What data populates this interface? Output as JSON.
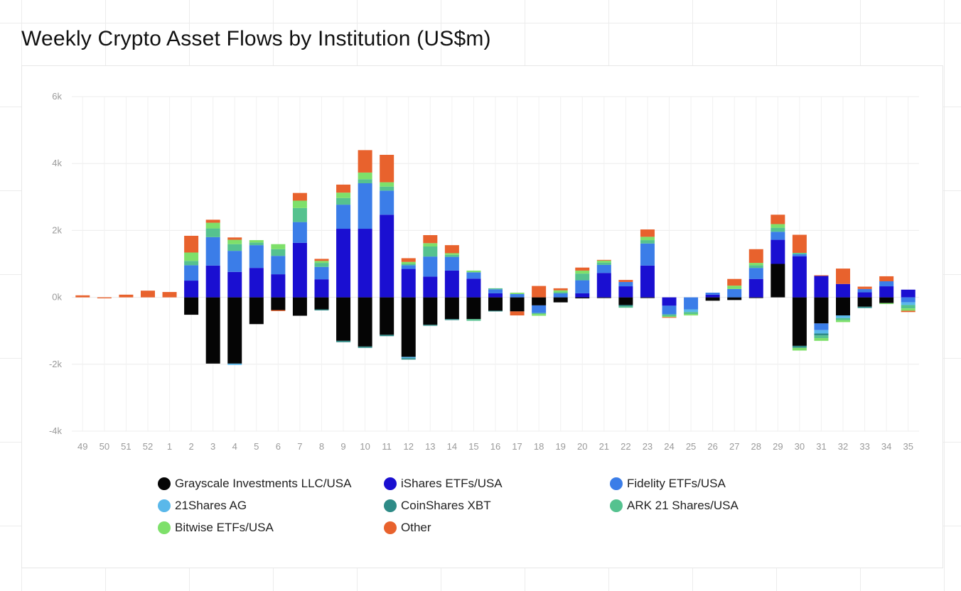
{
  "title": "Weekly Crypto Asset Flows by Institution (US$m)",
  "chart_data": {
    "type": "bar",
    "stacked": true,
    "ylim": [
      -4000,
      6000
    ],
    "yticks": [
      6000,
      4000,
      2000,
      0,
      -2000,
      -4000
    ],
    "ytick_labels": [
      "6k",
      "4k",
      "2k",
      "0k",
      "-2k",
      "-4k"
    ],
    "grid": true,
    "legend_position": "bottom",
    "categories": [
      "49",
      "50",
      "51",
      "52",
      "1",
      "2",
      "3",
      "4",
      "5",
      "6",
      "7",
      "8",
      "9",
      "10",
      "11",
      "12",
      "13",
      "14",
      "15",
      "16",
      "17",
      "18",
      "19",
      "20",
      "21",
      "22",
      "23",
      "24",
      "25",
      "26",
      "27",
      "28",
      "29",
      "30",
      "31",
      "32",
      "33",
      "34",
      "35"
    ],
    "series": [
      {
        "name": "Grayscale Investments LLC/USA",
        "color": "#050505",
        "values": [
          0,
          0,
          0,
          0,
          0,
          -520,
          -1980,
          -1980,
          -800,
          -380,
          -550,
          -360,
          -1300,
          -1470,
          -1120,
          -1780,
          -820,
          -650,
          -650,
          -400,
          -420,
          -240,
          -150,
          -30,
          -20,
          -230,
          -20,
          0,
          0,
          -100,
          -80,
          -20,
          1000,
          -1450,
          -780,
          -540,
          -280,
          -170,
          0
        ]
      },
      {
        "name": "iShares ETFs/USA",
        "color": "#1a0fd1",
        "values": [
          0,
          0,
          0,
          0,
          0,
          500,
          950,
          760,
          880,
          690,
          1630,
          540,
          2050,
          2050,
          2470,
          850,
          620,
          800,
          560,
          120,
          0,
          0,
          0,
          120,
          730,
          330,
          950,
          -250,
          0,
          80,
          0,
          550,
          720,
          1230,
          640,
          400,
          150,
          330,
          230
        ]
      },
      {
        "name": "Fidelity ETFs/USA",
        "color": "#3b7de8",
        "values": [
          0,
          0,
          0,
          0,
          0,
          460,
          850,
          630,
          680,
          550,
          620,
          370,
          720,
          1360,
          720,
          110,
          600,
          410,
          190,
          120,
          100,
          -230,
          120,
          390,
          240,
          130,
          660,
          -260,
          -360,
          60,
          250,
          330,
          240,
          60,
          -200,
          0,
          100,
          150,
          -150
        ]
      },
      {
        "name": "21Shares AG",
        "color": "#5ab8ea",
        "values": [
          0,
          0,
          0,
          0,
          0,
          0,
          0,
          -40,
          0,
          0,
          0,
          0,
          0,
          0,
          0,
          -40,
          0,
          0,
          0,
          0,
          0,
          0,
          0,
          0,
          0,
          0,
          0,
          0,
          -80,
          0,
          0,
          0,
          0,
          0,
          -100,
          -80,
          0,
          0,
          -80
        ]
      },
      {
        "name": "CoinShares XBT",
        "color": "#2e8b87",
        "values": [
          0,
          0,
          0,
          0,
          0,
          0,
          0,
          0,
          0,
          0,
          0,
          -30,
          -40,
          -40,
          -40,
          -40,
          -30,
          -30,
          0,
          -20,
          0,
          0,
          0,
          0,
          0,
          -40,
          0,
          0,
          0,
          0,
          0,
          0,
          0,
          -60,
          -60,
          0,
          -40,
          0,
          0
        ]
      },
      {
        "name": "ARK 21 Shares/USA",
        "color": "#55c28f",
        "values": [
          0,
          0,
          0,
          0,
          0,
          130,
          260,
          200,
          80,
          200,
          420,
          120,
          200,
          120,
          120,
          40,
          300,
          60,
          -50,
          30,
          0,
          -30,
          40,
          200,
          70,
          -40,
          100,
          -50,
          -60,
          0,
          0,
          80,
          120,
          40,
          -80,
          -60,
          0,
          0,
          -100
        ]
      },
      {
        "name": "Bitwise ETFs/USA",
        "color": "#7ee06a",
        "values": [
          0,
          0,
          0,
          0,
          0,
          250,
          170,
          130,
          70,
          150,
          220,
          60,
          160,
          200,
          130,
          60,
          100,
          50,
          50,
          0,
          40,
          -50,
          50,
          90,
          60,
          0,
          100,
          -30,
          -40,
          0,
          100,
          70,
          110,
          -80,
          -80,
          -60,
          0,
          -30,
          -70
        ]
      },
      {
        "name": "Other",
        "color": "#e8622d",
        "values": [
          60,
          -30,
          80,
          200,
          160,
          500,
          90,
          70,
          0,
          -30,
          230,
          60,
          240,
          670,
          820,
          110,
          240,
          240,
          0,
          0,
          -120,
          340,
          60,
          90,
          20,
          60,
          220,
          -20,
          0,
          0,
          200,
          410,
          280,
          540,
          20,
          460,
          70,
          150,
          -40
        ]
      }
    ]
  }
}
